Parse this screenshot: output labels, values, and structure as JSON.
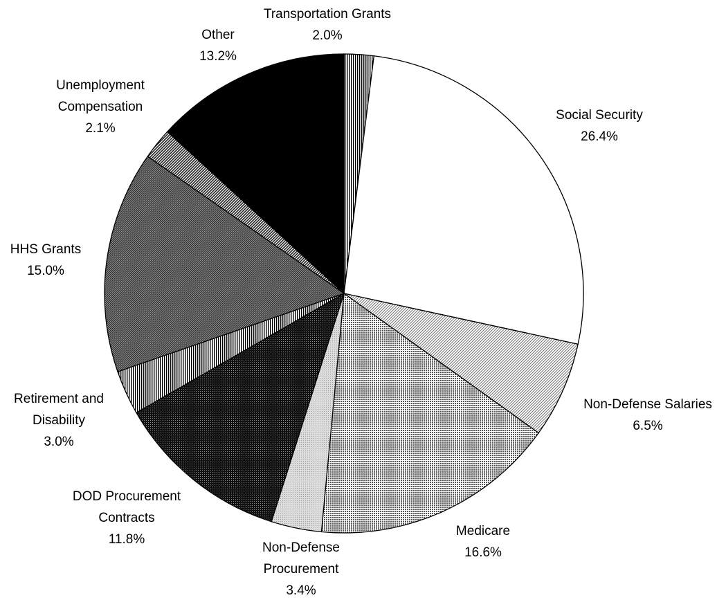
{
  "chart_data": {
    "type": "pie",
    "slices": [
      {
        "label": "Transportation Grants",
        "lines": [
          "Transportation Grants"
        ],
        "value": 2.0,
        "value_label": "2.0%",
        "pattern": "vertical-lines"
      },
      {
        "label": "Social Security",
        "lines": [
          "Social Security"
        ],
        "value": 26.4,
        "value_label": "26.4%",
        "pattern": "solid-white"
      },
      {
        "label": "Non-Defense Salaries",
        "lines": [
          "Non-Defense Salaries"
        ],
        "value": 6.5,
        "value_label": "6.5%",
        "pattern": "light-diagonal"
      },
      {
        "label": "Medicare",
        "lines": [
          "Medicare"
        ],
        "value": 16.6,
        "value_label": "16.6%",
        "pattern": "dotted-gray"
      },
      {
        "label": "Non-Defense Procurement",
        "lines": [
          "Non-Defense",
          "Procurement"
        ],
        "value": 3.4,
        "value_label": "3.4%",
        "pattern": "light-gray"
      },
      {
        "label": "DOD Procurement Contracts",
        "lines": [
          "DOD Procurement",
          "Contracts"
        ],
        "value": 11.8,
        "value_label": "11.8%",
        "pattern": "dense-dark-dots"
      },
      {
        "label": "Retirement and Disability",
        "lines": [
          "Retirement and",
          "Disability"
        ],
        "value": 3.0,
        "value_label": "3.0%",
        "pattern": "vertical-lines"
      },
      {
        "label": "HHS Grants",
        "lines": [
          "HHS Grants"
        ],
        "value": 15.0,
        "value_label": "15.0%",
        "pattern": "dark-diagonal"
      },
      {
        "label": "Unemployment Compensation",
        "lines": [
          "Unemployment",
          "Compensation"
        ],
        "value": 2.1,
        "value_label": "2.1%",
        "pattern": "medium-diagonal"
      },
      {
        "label": "Other",
        "lines": [
          "Other"
        ],
        "value": 13.2,
        "value_label": "13.2%",
        "pattern": "solid-black"
      }
    ],
    "start": "12 o'clock",
    "direction": "clockwise",
    "colors": {
      "outline": "#000000",
      "background": "#ffffff",
      "label": "#000000"
    }
  }
}
